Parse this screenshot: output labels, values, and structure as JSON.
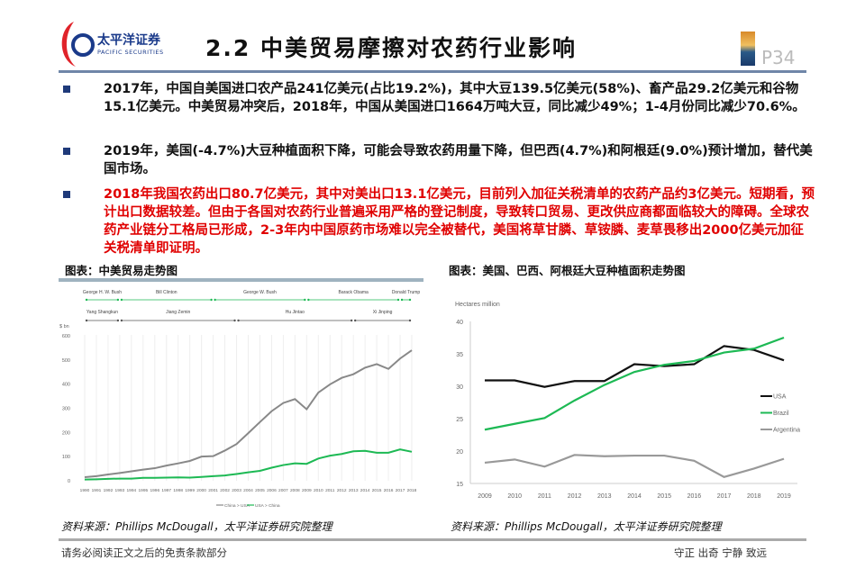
{
  "header": {
    "logo_cn": "太平洋证券",
    "logo_en": "PACIFIC SECURITIES",
    "title": "2.2 中美贸易摩擦对农药行业影响",
    "page": "P34"
  },
  "bullets": [
    {
      "text": "2017年，中国自美国进口农产品241亿美元(占比19.2%)，其中大豆139.5亿美元(58%)、畜产品29.2亿美元和谷物15.1亿美元。中美贸易冲突后，2018年，中国从美国进口1664万吨大豆，同比减少49%；1-4月份同比减少70.6%。"
    },
    {
      "text": "2019年，美国(-4.7%)大豆种植面积下降，可能会导致农药用量下降，但巴西(4.7%)和阿根廷(9.0%)预计增加，替代美国市场。"
    },
    {
      "text": "2018年我国农药出口80.7亿美元，其中对美出口13.1亿美元，目前列入加征关税清单的农药产品约3亿美元。短期看，预计出口数据较差。但由于各国对农药行业普遍采用严格的登记制度，导致转口贸易、更改供应商都面临较大的障碍。全球农药产业链分工格局已形成，2-3年内中国原药市场难以完全被替代，美国将草甘膦、草铵膦、麦草畏移出2000亿美元加征关税清单即证明。"
    }
  ],
  "colors": {
    "accent": "#1f3a7a",
    "highlight": "#e00000",
    "green": "#1db954",
    "gray": "#888888",
    "black": "#111111"
  },
  "captions": {
    "left": "图表：中美贸易走势图",
    "right": "图表：美国、巴西、阿根廷大豆种植面积走势图"
  },
  "sources": {
    "left": "资料来源：Phillips McDougall，太平洋证券研究院整理",
    "right": "资料来源：Phillips McDougall，太平洋证券研究院整理"
  },
  "footer": {
    "left": "请务必阅读正文之后的免责条款部分",
    "right": "守正 出奇 宁静 致远"
  },
  "chart_data": [
    {
      "type": "line",
      "ylabel": "$ bn",
      "ylim": [
        0,
        600
      ],
      "yticks": [
        0,
        100,
        200,
        300,
        400,
        500,
        600
      ],
      "x": [
        1990,
        1991,
        1992,
        1993,
        1994,
        1995,
        1996,
        1997,
        1998,
        1999,
        2000,
        2001,
        2002,
        2003,
        2004,
        2005,
        2006,
        2007,
        2008,
        2009,
        2010,
        2011,
        2012,
        2013,
        2014,
        2015,
        2016,
        2017,
        2018
      ],
      "series": [
        {
          "name": "China > USA",
          "color": "#888888",
          "values": [
            15,
            19,
            26,
            32,
            39,
            46,
            52,
            63,
            72,
            82,
            100,
            102,
            125,
            152,
            197,
            243,
            288,
            322,
            338,
            296,
            365,
            399,
            426,
            441,
            468,
            483,
            463,
            506,
            540
          ]
        },
        {
          "name": "USA > China",
          "color": "#1db954",
          "values": [
            5,
            6,
            8,
            9,
            9,
            12,
            12,
            13,
            14,
            13,
            16,
            19,
            22,
            28,
            35,
            41,
            54,
            65,
            72,
            70,
            92,
            104,
            111,
            122,
            124,
            116,
            116,
            130,
            120
          ]
        }
      ],
      "us_leaders": [
        {
          "name": "George H. W. Bush",
          "from": 1990,
          "to": 1993
        },
        {
          "name": "Bill Clinton",
          "from": 1993,
          "to": 2001
        },
        {
          "name": "George W. Bush",
          "from": 2001,
          "to": 2009
        },
        {
          "name": "Barack Obama",
          "from": 2009,
          "to": 2017
        },
        {
          "name": "Donald Trump",
          "from": 2017,
          "to": 2018
        }
      ],
      "china_leaders": [
        {
          "name": "Yang Shangkun",
          "from": 1990,
          "to": 1993
        },
        {
          "name": "Jiang Zemin",
          "from": 1993,
          "to": 2003
        },
        {
          "name": "Hu Jintao",
          "from": 2003,
          "to": 2013
        },
        {
          "name": "Xi Jinping",
          "from": 2013,
          "to": 2018
        }
      ],
      "legend": "bottom",
      "grid": "vertical"
    },
    {
      "type": "line",
      "ylabel": "Hectares million",
      "ylim": [
        15,
        40
      ],
      "yticks": [
        15,
        20,
        25,
        30,
        35,
        40
      ],
      "x": [
        2009,
        2010,
        2011,
        2012,
        2013,
        2014,
        2015,
        2016,
        2017,
        2018,
        2019
      ],
      "series": [
        {
          "name": "USA",
          "color": "#111111",
          "values": [
            30.9,
            30.9,
            29.9,
            30.8,
            30.8,
            33.4,
            33.1,
            33.4,
            36.2,
            35.6,
            34.0
          ]
        },
        {
          "name": "Brazil",
          "color": "#1db954",
          "values": [
            23.3,
            24.2,
            25.1,
            27.8,
            30.2,
            32.2,
            33.3,
            33.9,
            35.2,
            35.8,
            37.5
          ]
        },
        {
          "name": "Argentina",
          "color": "#999999",
          "values": [
            18.2,
            18.7,
            17.6,
            19.4,
            19.2,
            19.3,
            19.3,
            18.5,
            16.0,
            17.3,
            18.8
          ]
        }
      ],
      "legend": "right",
      "grid": "none"
    }
  ]
}
